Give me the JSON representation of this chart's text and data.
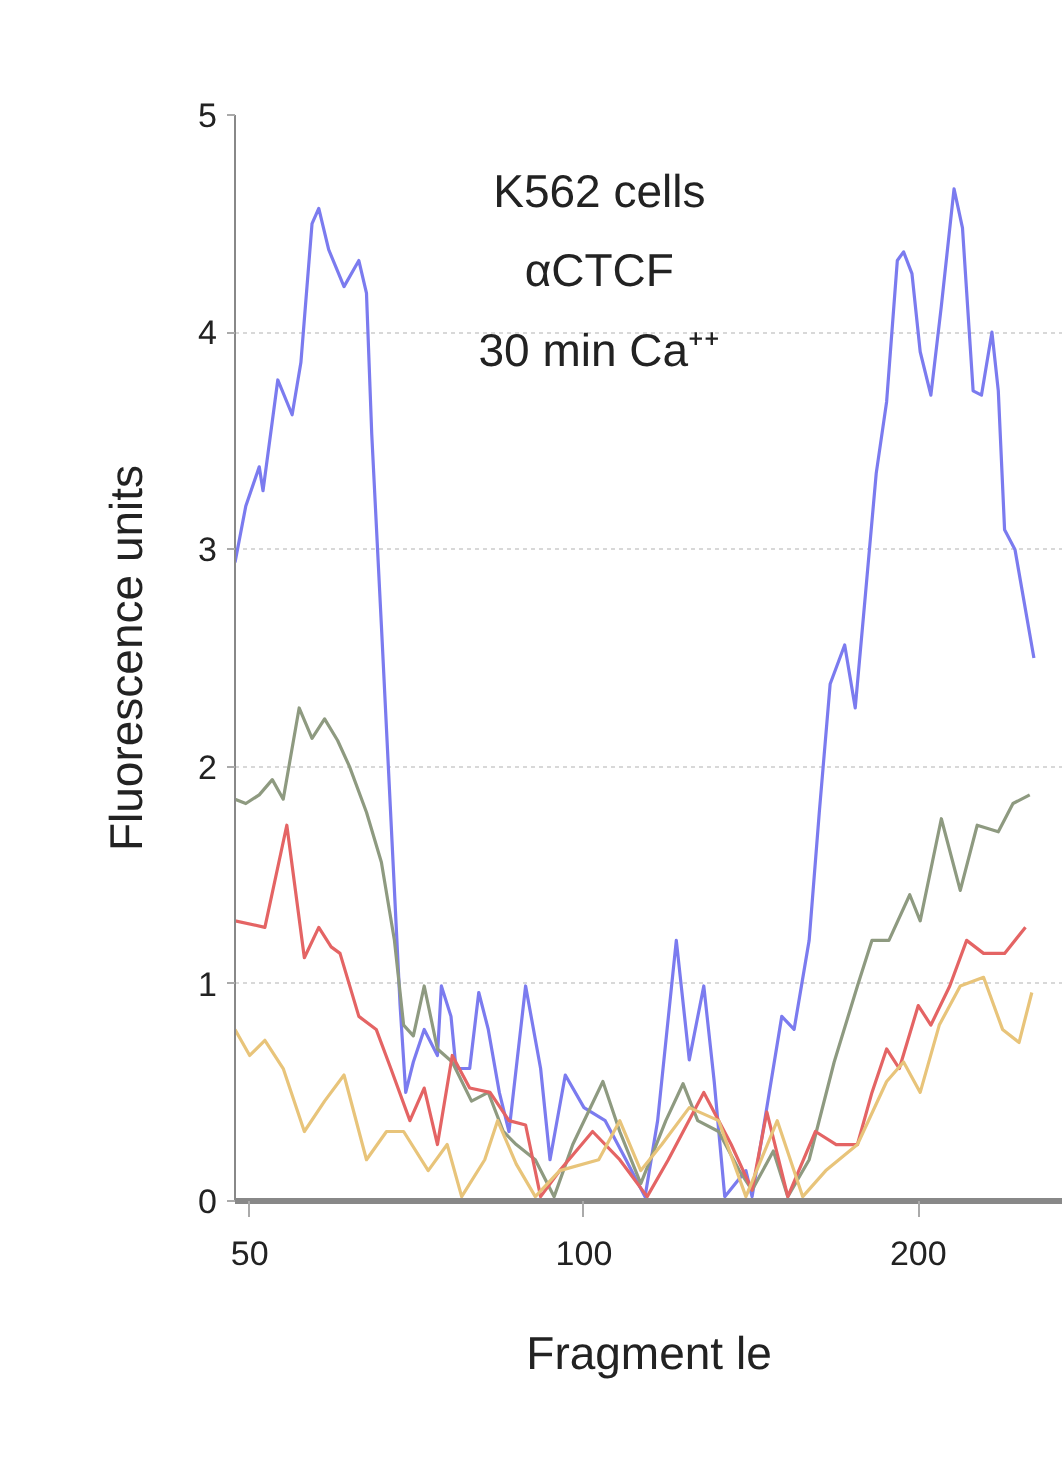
{
  "chart_data": {
    "type": "line",
    "xlabel": "Fragment le",
    "ylabel": "Fluorescence units",
    "annotations": [
      "K562 cells",
      "αCTCF",
      "30 min Ca⁺⁺"
    ],
    "log": "x",
    "xlim": [
      48.5,
      270
    ],
    "xticks": [
      50,
      100,
      200
    ],
    "ylim": [
      0,
      5
    ],
    "yticks": [
      0,
      1,
      2,
      3,
      4,
      5
    ],
    "grid": "y",
    "line_style": "solid",
    "marker": "none",
    "series": [
      {
        "color": "#7b7bef",
        "x": [
          48.5,
          49.6,
          51.0,
          51.4,
          52.4,
          53.0,
          54.6,
          55.6,
          56.9,
          57.7,
          58.9,
          60.8,
          62.7,
          63.7,
          64.4,
          65.7,
          68.3,
          69.1,
          70.2,
          71.8,
          73.8,
          74.4,
          75.9,
          76.7,
          78.9,
          80.4,
          82.0,
          83.9,
          85.6,
          88.6,
          91.4,
          93.2,
          96.2,
          100,
          104.5,
          109.1,
          113.5,
          116.5,
          121.1,
          124.4,
          128.2,
          131.0,
          133.9,
          139.9,
          141.7,
          146.1,
          150.7,
          154.6,
          159.5,
          162.9,
          166.6,
          171.7,
          175.5,
          179.3,
          183.3,
          187.3,
          191.5,
          194.0,
          197.4,
          200.8,
          205.3,
          209.8,
          215.4,
          219.2,
          224.1,
          228.0,
          233.0,
          236.1,
          239.2,
          244.4,
          254.2
        ],
        "values": [
          2.94,
          3.2,
          3.38,
          3.27,
          3.59,
          3.78,
          3.62,
          3.86,
          4.5,
          4.57,
          4.38,
          4.21,
          4.33,
          4.18,
          3.53,
          2.65,
          0.9,
          0.5,
          0.64,
          0.79,
          0.67,
          0.99,
          0.85,
          0.61,
          0.61,
          0.96,
          0.79,
          0.5,
          0.32,
          0.99,
          0.61,
          0.19,
          0.58,
          0.43,
          0.37,
          0.19,
          0.02,
          0.37,
          1.2,
          0.65,
          0.99,
          0.55,
          0.02,
          0.14,
          0.02,
          0.43,
          0.85,
          0.79,
          1.2,
          1.79,
          2.38,
          2.56,
          2.27,
          2.8,
          3.35,
          3.68,
          4.33,
          4.37,
          4.27,
          3.91,
          3.71,
          4.12,
          4.66,
          4.48,
          3.73,
          3.71,
          4.0,
          3.73,
          3.09,
          3.0,
          2.5
        ]
      },
      {
        "color": "#8e9a80",
        "x": [
          48.5,
          49.6,
          51.0,
          52.4,
          53.6,
          55.4,
          56.9,
          58.4,
          60.0,
          61.5,
          63.7,
          65.7,
          67.5,
          68.8,
          70.2,
          71.8,
          73.8,
          76.1,
          79.2,
          82.0,
          84.6,
          86.9,
          90.4,
          94.0,
          97.7,
          104.0,
          107.7,
          112.5,
          118.5,
          122.8,
          126.6,
          132.2,
          138.0,
          141.7,
          148.1,
          152.6,
          159.5,
          168.0,
          176.3,
          181.7,
          188.2,
          196.5,
          200.8,
          209.8,
          218.2,
          226.0,
          236.1,
          243.4,
          252.0
        ],
        "values": [
          1.85,
          1.83,
          1.87,
          1.94,
          1.85,
          2.27,
          2.13,
          2.22,
          2.12,
          2.0,
          1.79,
          1.56,
          1.2,
          0.81,
          0.76,
          0.99,
          0.7,
          0.64,
          0.46,
          0.5,
          0.32,
          0.26,
          0.19,
          0.02,
          0.26,
          0.55,
          0.32,
          0.08,
          0.37,
          0.54,
          0.37,
          0.32,
          0.14,
          0.05,
          0.23,
          0.02,
          0.19,
          0.64,
          0.99,
          1.2,
          1.2,
          1.41,
          1.29,
          1.76,
          1.43,
          1.73,
          1.7,
          1.83,
          1.87
        ]
      },
      {
        "color": "#e46464",
        "x": [
          48.5,
          51.6,
          54.0,
          56.0,
          57.7,
          59.2,
          60.3,
          62.7,
          65.0,
          67.0,
          69.7,
          71.8,
          73.8,
          76.1,
          78.9,
          82.3,
          85.6,
          88.6,
          91.4,
          95.1,
          101.8,
          107.7,
          114.0,
          119.1,
          128.2,
          135.7,
          141.7,
          146.1,
          152.6,
          161.6,
          168.7,
          176.3,
          181.7,
          187.3,
          192.3,
          200,
          205.3,
          213.5,
          221.1,
          229.0,
          239.2,
          249.8
        ],
        "values": [
          1.29,
          1.26,
          1.73,
          1.12,
          1.26,
          1.17,
          1.14,
          0.85,
          0.79,
          0.61,
          0.37,
          0.52,
          0.26,
          0.67,
          0.52,
          0.5,
          0.37,
          0.35,
          0.02,
          0.14,
          0.32,
          0.19,
          0.02,
          0.19,
          0.5,
          0.26,
          0.05,
          0.41,
          0.02,
          0.32,
          0.26,
          0.26,
          0.5,
          0.7,
          0.61,
          0.9,
          0.81,
          0.99,
          1.2,
          1.14,
          1.14,
          1.26
        ]
      },
      {
        "color": "#e8c47a",
        "x": [
          48.5,
          50,
          51.6,
          53.6,
          56.0,
          58.4,
          60.8,
          63.7,
          66.4,
          68.8,
          72.4,
          75.3,
          77.6,
          81.4,
          83.6,
          86.9,
          90.4,
          95.1,
          103.1,
          107.7,
          112.5,
          117.5,
          124.4,
          132.2,
          139.9,
          149.3,
          157.4,
          165.1,
          176.3,
          187.3,
          194.0,
          200.8,
          208.9,
          218.2,
          229.0,
          238.2,
          246.5,
          253.1
        ],
        "values": [
          0.79,
          0.67,
          0.74,
          0.61,
          0.32,
          0.46,
          0.58,
          0.19,
          0.32,
          0.32,
          0.14,
          0.26,
          0.02,
          0.19,
          0.37,
          0.17,
          0.02,
          0.14,
          0.19,
          0.37,
          0.14,
          0.26,
          0.43,
          0.37,
          0.02,
          0.37,
          0.02,
          0.14,
          0.26,
          0.55,
          0.64,
          0.5,
          0.81,
          0.99,
          1.03,
          0.79,
          0.73,
          0.96
        ]
      }
    ]
  }
}
